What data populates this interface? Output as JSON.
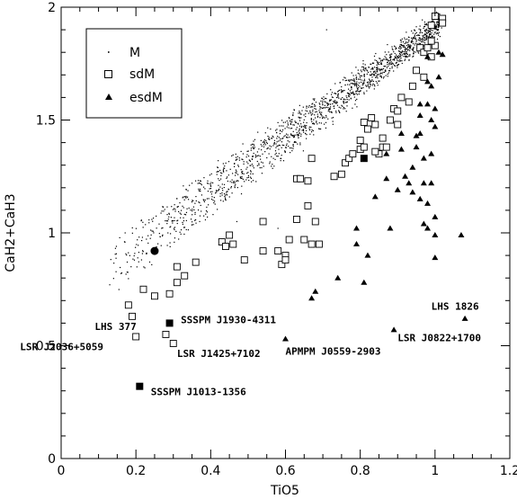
{
  "chart_data": {
    "type": "scatter",
    "xlabel": "TiO5",
    "ylabel": "CaH2+CaH3",
    "xlim": [
      0,
      1.2
    ],
    "ylim": [
      0,
      2
    ],
    "x_ticks": [
      "0",
      "0.2",
      "0.4",
      "0.6",
      "0.8",
      "1",
      "1.2"
    ],
    "y_ticks": [
      "0",
      "0.5",
      "1",
      "1.5",
      "2"
    ],
    "grid": false,
    "legend_position": "top-left",
    "legend": [
      {
        "label": "M",
        "marker": "dot"
      },
      {
        "label": "sdM",
        "marker": "open-square"
      },
      {
        "label": "esdM",
        "marker": "filled-triangle"
      }
    ],
    "series": [
      {
        "name": "sdM",
        "marker": "open-square",
        "points": [
          [
            0.19,
            0.63
          ],
          [
            0.18,
            0.68
          ],
          [
            0.22,
            0.75
          ],
          [
            0.25,
            0.72
          ],
          [
            0.29,
            0.73
          ],
          [
            0.2,
            0.54
          ],
          [
            0.28,
            0.55
          ],
          [
            0.3,
            0.51
          ],
          [
            0.31,
            0.78
          ],
          [
            0.31,
            0.85
          ],
          [
            0.33,
            0.81
          ],
          [
            0.36,
            0.87
          ],
          [
            0.43,
            0.96
          ],
          [
            0.44,
            0.94
          ],
          [
            0.45,
            0.99
          ],
          [
            0.46,
            0.95
          ],
          [
            0.49,
            0.88
          ],
          [
            0.54,
            0.92
          ],
          [
            0.58,
            0.92
          ],
          [
            0.59,
            0.86
          ],
          [
            0.6,
            0.9
          ],
          [
            0.6,
            0.88
          ],
          [
            0.61,
            0.97
          ],
          [
            0.63,
            1.06
          ],
          [
            0.65,
            0.97
          ],
          [
            0.67,
            0.95
          ],
          [
            0.69,
            0.95
          ],
          [
            0.68,
            1.05
          ],
          [
            0.66,
            1.12
          ],
          [
            0.63,
            1.24
          ],
          [
            0.64,
            1.24
          ],
          [
            0.66,
            1.23
          ],
          [
            0.67,
            1.33
          ],
          [
            0.73,
            1.25
          ],
          [
            0.75,
            1.26
          ],
          [
            0.76,
            1.31
          ],
          [
            0.77,
            1.33
          ],
          [
            0.78,
            1.35
          ],
          [
            0.8,
            1.37
          ],
          [
            0.8,
            1.41
          ],
          [
            0.81,
            1.38
          ],
          [
            0.82,
            1.46
          ],
          [
            0.83,
            1.51
          ],
          [
            0.84,
            1.48
          ],
          [
            0.85,
            1.35
          ],
          [
            0.86,
            1.38
          ],
          [
            0.87,
            1.38
          ],
          [
            0.88,
            1.5
          ],
          [
            0.89,
            1.55
          ],
          [
            0.9,
            1.54
          ],
          [
            0.91,
            1.6
          ],
          [
            0.93,
            1.58
          ],
          [
            0.94,
            1.65
          ],
          [
            0.95,
            1.72
          ],
          [
            0.96,
            1.82
          ],
          [
            0.97,
            1.8
          ],
          [
            0.98,
            1.82
          ],
          [
            0.99,
            1.78
          ],
          [
            1.0,
            1.83
          ],
          [
            0.99,
            1.85
          ],
          [
            0.99,
            1.92
          ],
          [
            1.0,
            1.96
          ],
          [
            1.02,
            1.95
          ],
          [
            1.02,
            1.93
          ],
          [
            0.97,
            1.69
          ],
          [
            0.84,
            1.36
          ],
          [
            0.86,
            1.42
          ],
          [
            0.9,
            1.48
          ],
          [
            0.81,
            1.49
          ],
          [
            0.54,
            1.05
          ]
        ]
      },
      {
        "name": "esdM",
        "marker": "filled-triangle",
        "points": [
          [
            0.6,
            0.53
          ],
          [
            0.67,
            0.71
          ],
          [
            0.68,
            0.74
          ],
          [
            0.74,
            0.8
          ],
          [
            0.81,
            0.78
          ],
          [
            0.82,
            0.9
          ],
          [
            0.79,
            0.95
          ],
          [
            0.79,
            1.02
          ],
          [
            0.84,
            1.16
          ],
          [
            0.87,
            1.24
          ],
          [
            0.87,
            1.35
          ],
          [
            0.88,
            1.02
          ],
          [
            0.89,
            0.57
          ],
          [
            0.9,
            1.19
          ],
          [
            0.91,
            1.37
          ],
          [
            0.91,
            1.44
          ],
          [
            0.92,
            1.25
          ],
          [
            0.93,
            1.22
          ],
          [
            0.94,
            1.18
          ],
          [
            0.94,
            1.29
          ],
          [
            0.95,
            1.38
          ],
          [
            0.95,
            1.43
          ],
          [
            0.96,
            1.44
          ],
          [
            0.96,
            1.52
          ],
          [
            0.96,
            1.57
          ],
          [
            0.97,
            1.33
          ],
          [
            0.97,
            1.22
          ],
          [
            0.96,
            1.15
          ],
          [
            0.98,
            1.13
          ],
          [
            0.99,
            1.22
          ],
          [
            0.99,
            1.35
          ],
          [
            0.99,
            1.65
          ],
          [
            1.0,
            1.47
          ],
          [
            1.0,
            1.55
          ],
          [
            1.01,
            1.69
          ],
          [
            1.01,
            1.8
          ],
          [
            1.02,
            1.79
          ],
          [
            0.98,
            1.78
          ],
          [
            0.98,
            1.67
          ],
          [
            1.07,
            0.99
          ],
          [
            1.08,
            0.62
          ],
          [
            0.98,
            1.02
          ],
          [
            1.0,
            0.99
          ],
          [
            1.0,
            0.89
          ],
          [
            0.97,
            1.04
          ],
          [
            1.0,
            1.07
          ],
          [
            0.99,
            1.5
          ],
          [
            0.98,
            1.57
          ]
        ]
      },
      {
        "name": "highlighted",
        "marker": "filled-square",
        "points": [
          [
            0.81,
            1.33
          ],
          [
            0.29,
            0.6
          ],
          [
            0.21,
            0.32
          ]
        ]
      },
      {
        "name": "highlighted-circle",
        "marker": "filled-circle",
        "points": [
          [
            0.25,
            0.92
          ]
        ]
      }
    ],
    "annotations": [
      {
        "text": "LHS 377",
        "x": 0.09,
        "y": 0.57
      },
      {
        "text": "SSSPM J1930-4311",
        "x": 0.32,
        "y": 0.6
      },
      {
        "text": "LSR J2036+5059",
        "x": -0.11,
        "y": 0.48
      },
      {
        "text": "LSR J1425+7102",
        "x": 0.31,
        "y": 0.45
      },
      {
        "text": "APMPM J0559-2903",
        "x": 0.6,
        "y": 0.46
      },
      {
        "text": "LSR J0822+1700",
        "x": 0.9,
        "y": 0.52
      },
      {
        "text": "LHS 1826",
        "x": 0.99,
        "y": 0.66
      },
      {
        "text": "SSSPM J1013-1356",
        "x": 0.24,
        "y": 0.28
      }
    ]
  }
}
